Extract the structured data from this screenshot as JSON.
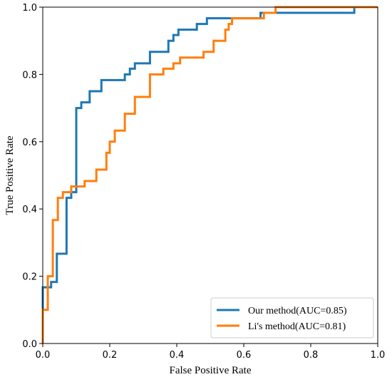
{
  "chart_data": {
    "type": "line",
    "title": "",
    "xlabel": "False Positive Rate",
    "ylabel": "True Positive Rate",
    "xlim": [
      0,
      1
    ],
    "ylim": [
      0,
      1
    ],
    "x_ticks": [
      "0.0",
      "0.2",
      "0.4",
      "0.6",
      "0.8",
      "1.0"
    ],
    "y_ticks": [
      "0.0",
      "0.2",
      "0.4",
      "0.6",
      "0.8",
      "1.0"
    ],
    "grid": false,
    "legend_position": "bottom-right",
    "series": [
      {
        "name": "Our method(AUC=0.85)",
        "color": "#1f77b4",
        "points": [
          [
            0.0,
            0.0
          ],
          [
            0.0,
            0.167
          ],
          [
            0.025,
            0.167
          ],
          [
            0.025,
            0.183
          ],
          [
            0.042,
            0.183
          ],
          [
            0.042,
            0.267
          ],
          [
            0.071,
            0.267
          ],
          [
            0.071,
            0.433
          ],
          [
            0.085,
            0.433
          ],
          [
            0.085,
            0.45
          ],
          [
            0.1,
            0.45
          ],
          [
            0.1,
            0.7
          ],
          [
            0.115,
            0.7
          ],
          [
            0.115,
            0.717
          ],
          [
            0.14,
            0.717
          ],
          [
            0.14,
            0.75
          ],
          [
            0.175,
            0.75
          ],
          [
            0.175,
            0.783
          ],
          [
            0.245,
            0.783
          ],
          [
            0.245,
            0.8
          ],
          [
            0.26,
            0.8
          ],
          [
            0.26,
            0.817
          ],
          [
            0.275,
            0.817
          ],
          [
            0.275,
            0.833
          ],
          [
            0.32,
            0.833
          ],
          [
            0.32,
            0.867
          ],
          [
            0.375,
            0.867
          ],
          [
            0.375,
            0.9
          ],
          [
            0.39,
            0.9
          ],
          [
            0.39,
            0.917
          ],
          [
            0.405,
            0.917
          ],
          [
            0.405,
            0.933
          ],
          [
            0.46,
            0.933
          ],
          [
            0.46,
            0.95
          ],
          [
            0.49,
            0.95
          ],
          [
            0.49,
            0.967
          ],
          [
            0.65,
            0.967
          ],
          [
            0.65,
            0.983
          ],
          [
            0.93,
            0.983
          ],
          [
            0.93,
            1.0
          ],
          [
            1.0,
            1.0
          ]
        ]
      },
      {
        "name": "Li's method(AUC=0.81)",
        "color": "#ff7f0e",
        "points": [
          [
            0.0,
            0.0
          ],
          [
            0.0,
            0.1
          ],
          [
            0.015,
            0.1
          ],
          [
            0.015,
            0.2
          ],
          [
            0.03,
            0.2
          ],
          [
            0.03,
            0.367
          ],
          [
            0.045,
            0.367
          ],
          [
            0.045,
            0.433
          ],
          [
            0.06,
            0.433
          ],
          [
            0.06,
            0.45
          ],
          [
            0.085,
            0.45
          ],
          [
            0.085,
            0.467
          ],
          [
            0.125,
            0.467
          ],
          [
            0.125,
            0.483
          ],
          [
            0.16,
            0.483
          ],
          [
            0.16,
            0.517
          ],
          [
            0.19,
            0.517
          ],
          [
            0.19,
            0.567
          ],
          [
            0.2,
            0.567
          ],
          [
            0.2,
            0.6
          ],
          [
            0.215,
            0.6
          ],
          [
            0.215,
            0.633
          ],
          [
            0.245,
            0.633
          ],
          [
            0.245,
            0.683
          ],
          [
            0.275,
            0.683
          ],
          [
            0.275,
            0.733
          ],
          [
            0.32,
            0.733
          ],
          [
            0.32,
            0.8
          ],
          [
            0.36,
            0.8
          ],
          [
            0.36,
            0.817
          ],
          [
            0.39,
            0.817
          ],
          [
            0.39,
            0.833
          ],
          [
            0.41,
            0.833
          ],
          [
            0.41,
            0.85
          ],
          [
            0.48,
            0.85
          ],
          [
            0.48,
            0.867
          ],
          [
            0.51,
            0.867
          ],
          [
            0.51,
            0.9
          ],
          [
            0.545,
            0.9
          ],
          [
            0.545,
            0.933
          ],
          [
            0.555,
            0.933
          ],
          [
            0.555,
            0.95
          ],
          [
            0.565,
            0.95
          ],
          [
            0.565,
            0.967
          ],
          [
            0.66,
            0.967
          ],
          [
            0.66,
            0.983
          ],
          [
            0.695,
            0.983
          ],
          [
            0.695,
            1.0
          ],
          [
            1.0,
            1.0
          ]
        ]
      }
    ]
  }
}
